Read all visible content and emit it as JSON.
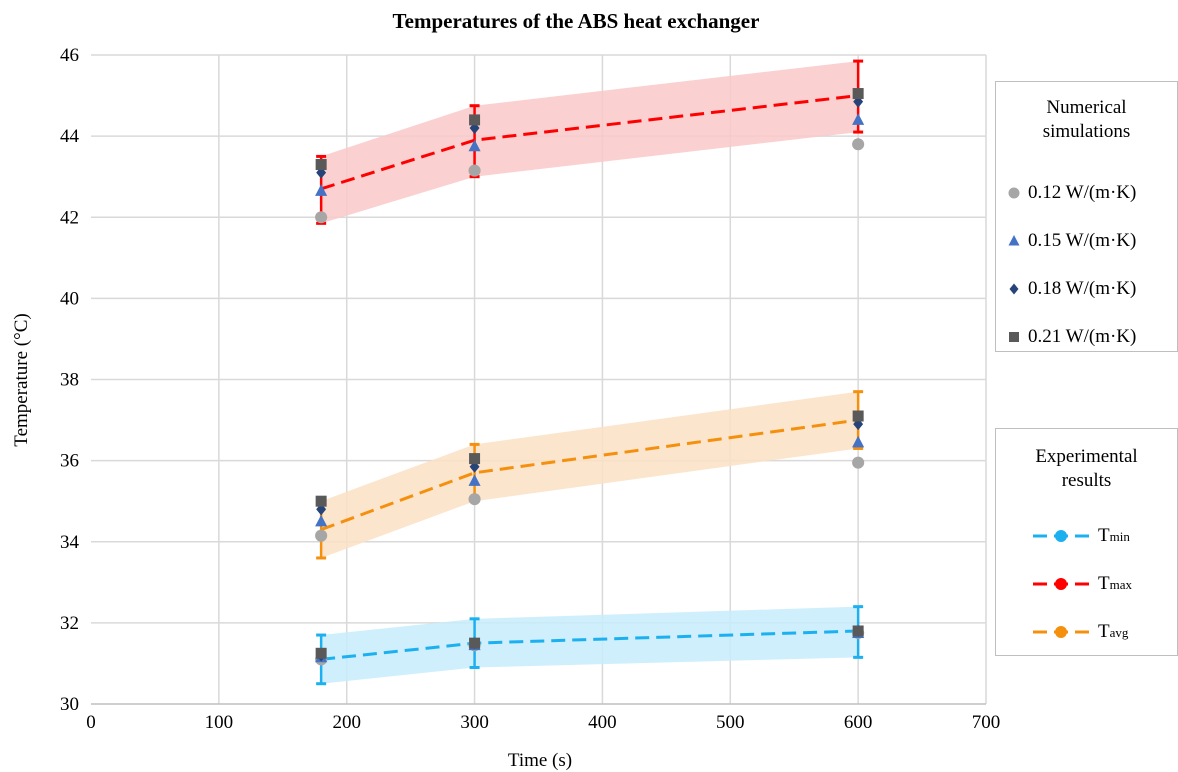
{
  "chart_data": {
    "type": "line",
    "title": "Temperatures of the ABS heat exchanger",
    "xlabel": "Time (s)",
    "ylabel": "Temperature (°C)",
    "xlim": [
      0,
      700
    ],
    "ylim": [
      30,
      46
    ],
    "x_ticks": [
      "0",
      "100",
      "200",
      "300",
      "400",
      "500",
      "600",
      "700"
    ],
    "y_ticks": [
      "30",
      "32",
      "34",
      "36",
      "38",
      "40",
      "42",
      "44",
      "46"
    ],
    "grid": true,
    "experimental": {
      "legend_title": "Experimental results",
      "x": [
        180,
        300,
        600
      ],
      "series": [
        {
          "name": "Tmin",
          "base": "T",
          "sub": "min",
          "color": "#1cb0f0",
          "band": "#c7ecfb",
          "values": [
            31.1,
            31.5,
            31.8
          ],
          "err_low": [
            30.5,
            30.9,
            31.15
          ],
          "err_high": [
            31.7,
            32.1,
            32.4
          ]
        },
        {
          "name": "Tmax",
          "base": "T",
          "sub": "max",
          "color": "#ff0000",
          "band": "#f9c8c8",
          "values": [
            42.7,
            43.9,
            45.0
          ],
          "err_low": [
            41.85,
            43.0,
            44.1
          ],
          "err_high": [
            43.5,
            44.75,
            45.85
          ]
        },
        {
          "name": "Tavg",
          "base": "T",
          "sub": "avg",
          "color": "#f5900f",
          "band": "#fbe0c4",
          "values": [
            34.3,
            35.7,
            37.0
          ],
          "err_low": [
            33.6,
            35.0,
            36.3
          ],
          "err_high": [
            35.0,
            36.4,
            37.7
          ]
        }
      ]
    },
    "numerical": {
      "legend_title": "Numerical simulations",
      "x": [
        180,
        300,
        600
      ],
      "series": [
        {
          "name": "0.12 W/(m·K)",
          "marker": "circle",
          "color": "#a6a6a6",
          "values": {
            "tmin": [
              31.1,
              31.45,
              31.75
            ],
            "tmax": [
              42.0,
              43.15,
              43.8
            ],
            "tavg": [
              34.15,
              35.05,
              35.95
            ]
          }
        },
        {
          "name": "0.15 W/(m·K)",
          "marker": "triangle",
          "color": "#4472c4",
          "values": {
            "tmin": [
              31.15,
              31.45,
              31.75
            ],
            "tmax": [
              42.65,
              43.75,
              44.4
            ],
            "tavg": [
              34.5,
              35.5,
              36.45
            ]
          }
        },
        {
          "name": "0.18 W/(m·K)",
          "marker": "diamond",
          "color": "#264478",
          "values": {
            "tmin": [
              31.2,
              31.5,
              31.8
            ],
            "tmax": [
              43.1,
              44.2,
              44.85
            ],
            "tavg": [
              34.8,
              35.85,
              36.9
            ]
          }
        },
        {
          "name": "0.21 W/(m·K)",
          "marker": "square",
          "color": "#595959",
          "values": {
            "tmin": [
              31.25,
              31.5,
              31.8
            ],
            "tmax": [
              43.3,
              44.4,
              45.05
            ],
            "tavg": [
              35.0,
              36.05,
              37.1
            ]
          }
        }
      ]
    }
  }
}
